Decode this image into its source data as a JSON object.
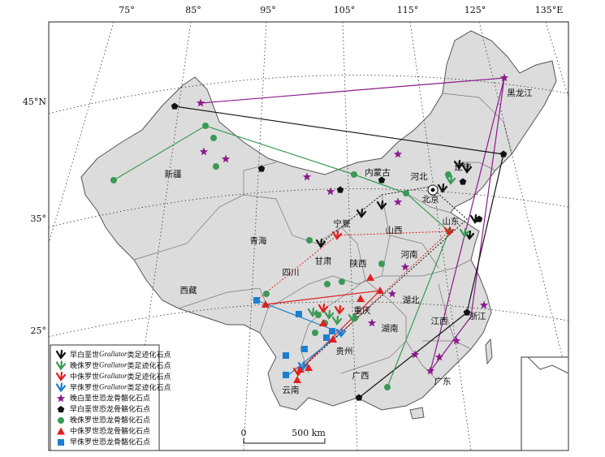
{
  "graticule": {
    "longitudes": [
      "75°",
      "85°",
      "95°",
      "105°",
      "115°",
      "125°",
      "135°E"
    ],
    "latitudes": [
      "45°N",
      "35°",
      "25°"
    ]
  },
  "provinces": [
    "新疆",
    "西藏",
    "青海",
    "甘肃",
    "四川",
    "内蒙古",
    "宁夏",
    "陕西",
    "山西",
    "河北",
    "北京",
    "辽宁",
    "黑龙江",
    "山东",
    "河南",
    "湖北",
    "重庆",
    "湖南",
    "贵州",
    "云南",
    "广西",
    "广东",
    "江西",
    "浙江"
  ],
  "legend": [
    {
      "prefix": "早白垩世",
      "italic": "Grallator",
      "suffix": "类足迹化石点"
    },
    {
      "prefix": "晚侏罗世",
      "italic": "Grallator",
      "suffix": "类足迹化石点"
    },
    {
      "prefix": "中侏罗世",
      "italic": "Grallator",
      "suffix": "类足迹化石点"
    },
    {
      "prefix": "早侏罗世",
      "italic": "Grallator",
      "suffix": "类足迹化石点"
    },
    {
      "text": "晚白垩世恐龙骨骼化石点"
    },
    {
      "text": "早白垩世恐龙骨骼化石点"
    },
    {
      "text": "晚侏罗世恐龙骨骼化石点"
    },
    {
      "text": "中侏罗世恐龙骨骼化石点"
    },
    {
      "text": "早侏罗世恐龙骨骼化石点"
    }
  ],
  "scale_bar": {
    "start": "0",
    "end": "500 km"
  }
}
